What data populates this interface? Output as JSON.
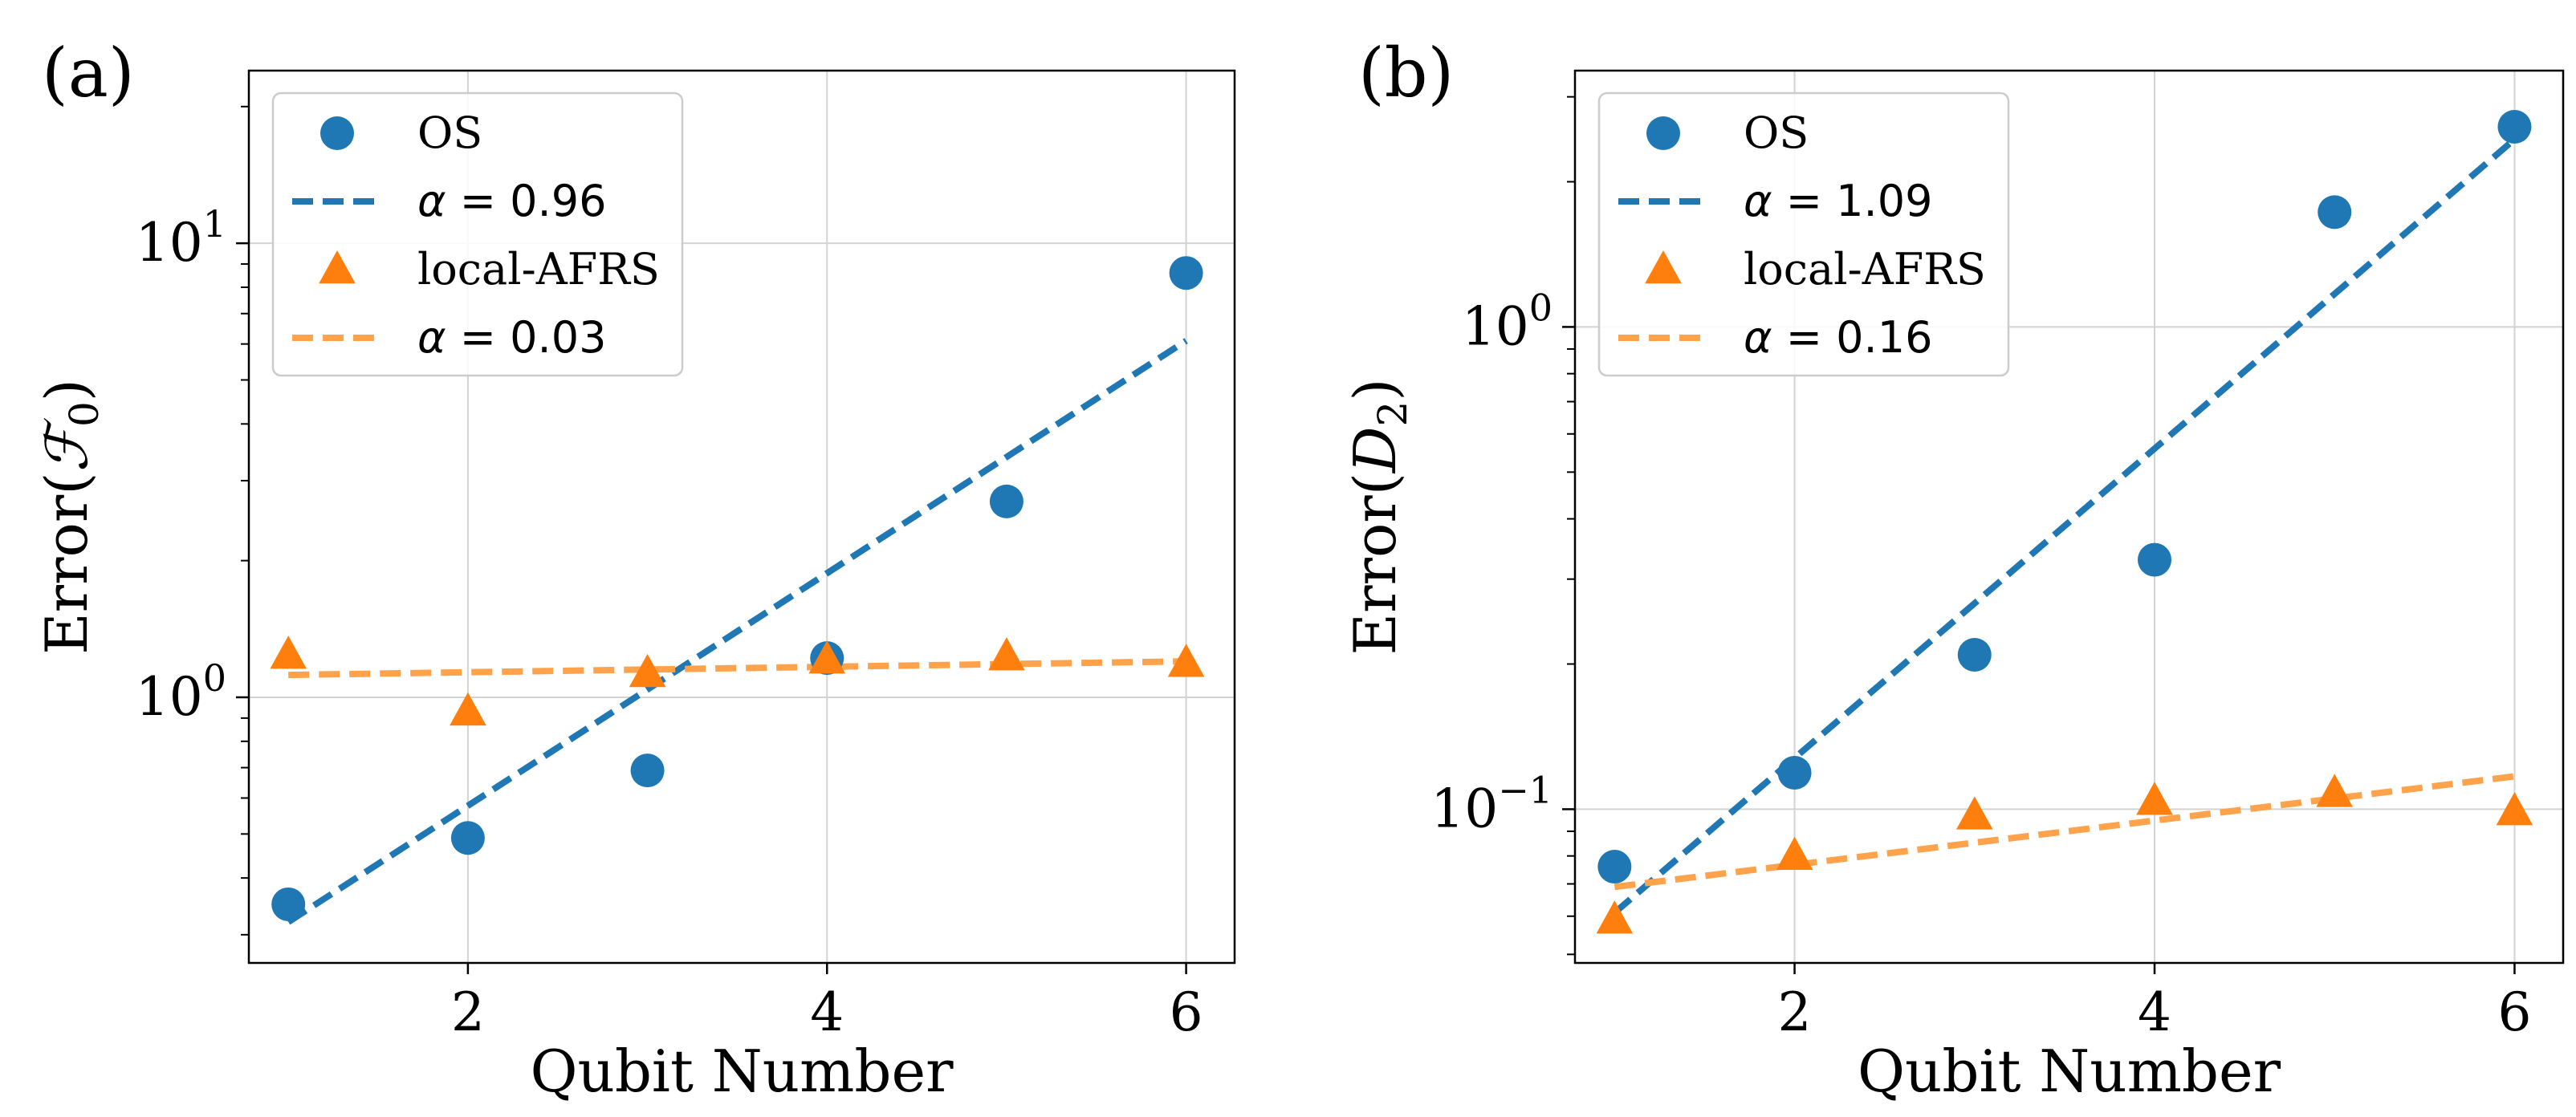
{
  "colors": {
    "os": "#1f77b4",
    "afrs": "#ff7f0e",
    "afrs_fit": "#ffa24c",
    "grid": "#d3d3d3"
  },
  "chart_data": [
    {
      "type": "scatter",
      "panel_label": "(a)",
      "xlabel": "Qubit Number",
      "ylabel_prefix": "Error(",
      "ylabel_symbol": "ℱ",
      "ylabel_sub": "0",
      "ylabel_suffix": ")",
      "yscale": "log",
      "xlim": [
        0.78,
        6.27
      ],
      "ylim": [
        0.26,
        24
      ],
      "xticks": [
        2,
        4,
        6
      ],
      "yticks": [
        {
          "value": 1,
          "base": "10",
          "exp": "0"
        },
        {
          "value": 10,
          "base": "10",
          "exp": "1"
        }
      ],
      "x": [
        1,
        2,
        3,
        4,
        5,
        6
      ],
      "series": [
        {
          "name": "OS",
          "kind": "points",
          "marker": "circle",
          "values": [
            0.35,
            0.49,
            0.69,
            1.22,
            2.7,
            8.6
          ]
        },
        {
          "name": "α = 0.96",
          "kind": "fit",
          "x_range": [
            1,
            6
          ],
          "y_range": [
            0.32,
            6.1
          ]
        },
        {
          "name": "local-AFRS",
          "kind": "points",
          "marker": "triangle",
          "values": [
            1.24,
            0.93,
            1.13,
            1.21,
            1.23,
            1.19
          ]
        },
        {
          "name": "α = 0.03",
          "kind": "fit",
          "x_range": [
            1,
            6
          ],
          "y_range": [
            1.12,
            1.2
          ]
        }
      ],
      "legend": [
        {
          "label": "OS",
          "series": "OS"
        },
        {
          "label_math": "α",
          "label_rest": " = 0.96",
          "series": "α = 0.96"
        },
        {
          "label": "local-AFRS",
          "series": "local-AFRS"
        },
        {
          "label_math": "α",
          "label_rest": " = 0.03",
          "series": "α = 0.03"
        }
      ],
      "legend_position": "top-left",
      "grid": true
    },
    {
      "type": "scatter",
      "panel_label": "(b)",
      "xlabel": "Qubit Number",
      "ylabel_prefix": "Error(",
      "ylabel_symbol": "D",
      "ylabel_sub": "2",
      "ylabel_suffix": ")",
      "yscale": "log",
      "xlim": [
        0.78,
        6.27
      ],
      "ylim": [
        0.048,
        3.4
      ],
      "xticks": [
        2,
        4,
        6
      ],
      "yticks": [
        {
          "value": 0.1,
          "base": "10",
          "exp": "−1"
        },
        {
          "value": 1,
          "base": "10",
          "exp": "0"
        }
      ],
      "x": [
        1,
        2,
        3,
        4,
        5,
        6
      ],
      "series": [
        {
          "name": "OS",
          "kind": "points",
          "marker": "circle",
          "values": [
            0.076,
            0.119,
            0.209,
            0.329,
            1.73,
            2.6
          ]
        },
        {
          "name": "α = 1.09",
          "kind": "fit",
          "x_range": [
            1,
            6
          ],
          "y_range": [
            0.061,
            2.45
          ]
        },
        {
          "name": "local-AFRS",
          "kind": "points",
          "marker": "triangle",
          "values": [
            0.059,
            0.08,
            0.097,
            0.104,
            0.108,
            0.099
          ]
        },
        {
          "name": "α = 0.16",
          "kind": "fit",
          "x_range": [
            1,
            6
          ],
          "y_range": [
            0.069,
            0.117
          ]
        }
      ],
      "legend": [
        {
          "label": "OS",
          "series": "OS"
        },
        {
          "label_math": "α",
          "label_rest": " = 1.09",
          "series": "α = 1.09"
        },
        {
          "label": "local-AFRS",
          "series": "local-AFRS"
        },
        {
          "label_math": "α",
          "label_rest": " = 0.16",
          "series": "α = 0.16"
        }
      ],
      "legend_position": "top-left",
      "grid": true
    }
  ]
}
